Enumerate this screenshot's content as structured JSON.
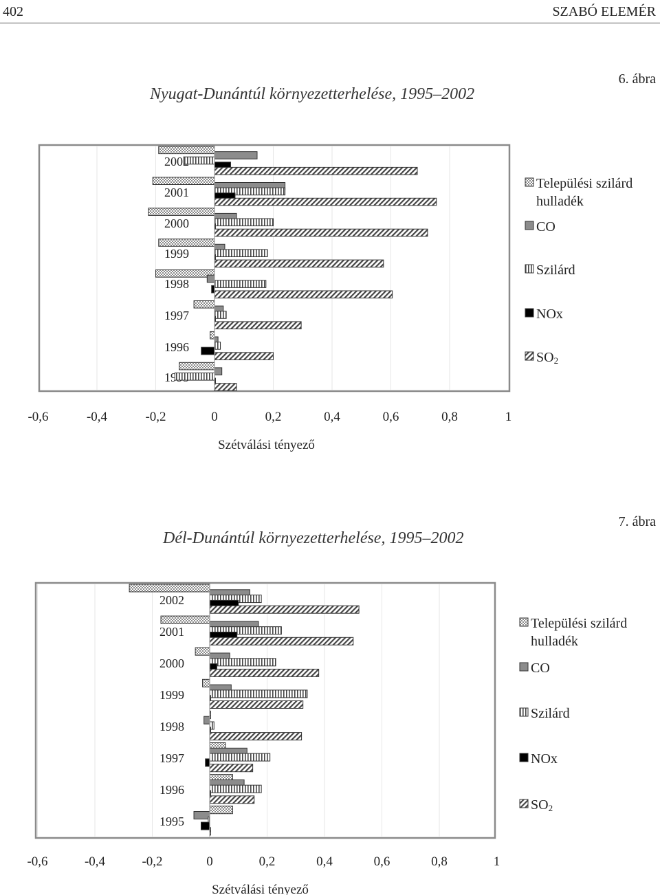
{
  "header": {
    "page_number": "402",
    "author": "SZABÓ ELEMÉR"
  },
  "figures": [
    {
      "number_label": "6. ábra",
      "title": "Nyugat-Dunántúl környezetterhelése, 1995–2002"
    },
    {
      "number_label": "7. ábra",
      "title": "Dél-Dunántúl környezetterhelése, 1995–2002"
    }
  ],
  "legend": [
    {
      "name": "Települési szilárd hulladék",
      "lines": [
        "Települési szilárd",
        "hulladék"
      ],
      "pattern": "dots"
    },
    {
      "name": "CO",
      "lines": [
        "CO"
      ],
      "pattern": "gray"
    },
    {
      "name": "Szilárd",
      "lines": [
        "Szilárd"
      ],
      "pattern": "vlines"
    },
    {
      "name": "NOx",
      "lines": [
        "NOx"
      ],
      "pattern": "black"
    },
    {
      "name": "SO2",
      "lines": [
        "SO",
        "2"
      ],
      "pattern": "diag"
    }
  ],
  "chart_data": [
    {
      "type": "bar",
      "orientation": "horizontal",
      "title": "Nyugat-Dunántúl környezetterhelése, 1995–2002",
      "xlabel": "Szétválási tényező",
      "ylabel": "",
      "xlim": [
        -0.6,
        1
      ],
      "x_ticks": [
        "-0,6",
        "-0,4",
        "-0,2",
        "0",
        "0,2",
        "0,4",
        "0,6",
        "0,8",
        "1"
      ],
      "categories": [
        "2002",
        "2001",
        "2000",
        "1999",
        "1998",
        "1997",
        "1996",
        "1995"
      ],
      "legend_position": "right",
      "grid": false,
      "series": [
        {
          "name": "Települési szilárd hulladék",
          "values": [
            -0.19,
            -0.21,
            -0.225,
            -0.19,
            -0.2,
            -0.07,
            -0.015,
            -0.12
          ]
        },
        {
          "name": "CO",
          "values": [
            0.145,
            0.24,
            0.075,
            0.035,
            -0.025,
            0.03,
            0.012,
            0.025
          ]
        },
        {
          "name": "Szilárd",
          "values": [
            -0.105,
            0.24,
            0.2,
            0.18,
            0.175,
            0.04,
            0.02,
            -0.135
          ]
        },
        {
          "name": "NOx",
          "values": [
            0.055,
            0.07,
            0.0,
            0.0,
            -0.01,
            0.0,
            -0.045,
            0.0
          ]
        },
        {
          "name": "SO2",
          "values": [
            0.69,
            0.755,
            0.725,
            0.575,
            0.605,
            0.295,
            0.2,
            0.075
          ]
        }
      ]
    },
    {
      "type": "bar",
      "orientation": "horizontal",
      "title": "Dél-Dunántúl környezetterhelése, 1995–2002",
      "xlabel": "Szétválási tényező",
      "ylabel": "",
      "xlim": [
        -0.6,
        1
      ],
      "x_ticks": [
        "-0,6",
        "-0,4",
        "-0,2",
        "0",
        "0,2",
        "0,4",
        "0,6",
        "0,8",
        "1"
      ],
      "categories": [
        "2002",
        "2001",
        "2000",
        "1999",
        "1998",
        "1997",
        "1996",
        "1995"
      ],
      "legend_position": "right",
      "grid": false,
      "series": [
        {
          "name": "Települési szilárd hulladék",
          "values": [
            -0.28,
            -0.17,
            -0.05,
            -0.025,
            0.0,
            0.055,
            0.08,
            0.08
          ]
        },
        {
          "name": "CO",
          "values": [
            0.14,
            0.17,
            0.07,
            0.075,
            -0.02,
            0.13,
            0.12,
            -0.055
          ]
        },
        {
          "name": "Szilárd",
          "values": [
            0.18,
            0.25,
            0.23,
            0.34,
            0.015,
            0.21,
            0.18,
            -0.005
          ]
        },
        {
          "name": "NOx",
          "values": [
            0.1,
            0.095,
            0.025,
            0.0,
            0.0,
            -0.015,
            0.0,
            -0.03
          ]
        },
        {
          "name": "SO2",
          "values": [
            0.52,
            0.5,
            0.38,
            0.325,
            0.32,
            0.15,
            0.155,
            0.0
          ]
        }
      ]
    }
  ]
}
